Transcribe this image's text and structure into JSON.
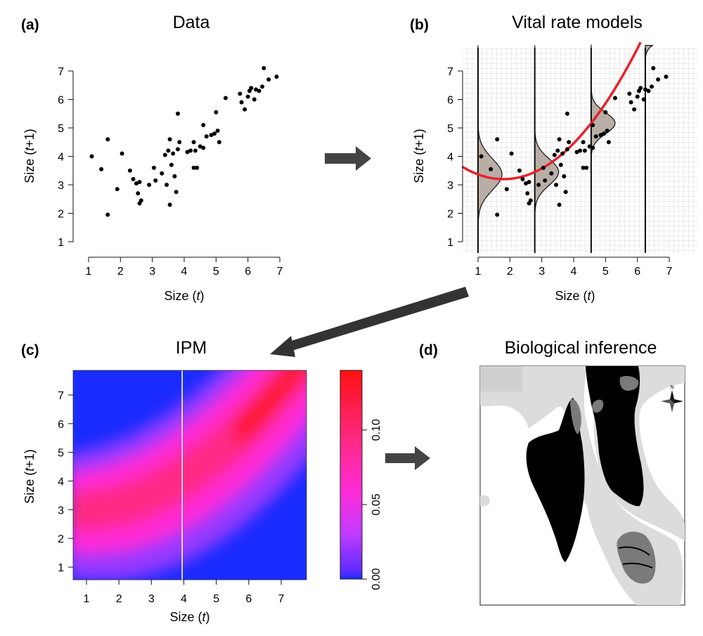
{
  "panels": {
    "a": {
      "label": "(a)",
      "title": "Data"
    },
    "b": {
      "label": "(b)",
      "title": "Vital rate models"
    },
    "c": {
      "label": "(c)",
      "title": "IPM"
    },
    "d": {
      "label": "(d)",
      "title": "Biological inference"
    }
  },
  "axes": {
    "x_label_main": "Size (",
    "x_label_var": "t",
    "x_label_end": ")",
    "y_label_main": "Size (",
    "y_label_var": "t",
    "y_label_end": "+1)",
    "x_ticks": [
      "1",
      "2",
      "3",
      "4",
      "5",
      "6",
      "7"
    ],
    "y_ticks": [
      "1",
      "2",
      "3",
      "4",
      "5",
      "6",
      "7"
    ],
    "xlim": [
      1,
      7
    ],
    "ylim": [
      1,
      7
    ]
  },
  "chart_data": {
    "type": "scatter",
    "x": [
      1.1,
      1.4,
      1.6,
      1.6,
      1.9,
      2.05,
      2.3,
      2.4,
      2.5,
      2.55,
      2.6,
      2.6,
      2.65,
      2.9,
      3.05,
      3.1,
      3.3,
      3.4,
      3.45,
      3.5,
      3.55,
      3.55,
      3.6,
      3.65,
      3.7,
      3.75,
      3.8,
      3.8,
      3.85,
      4.1,
      4.2,
      4.3,
      4.3,
      4.35,
      4.4,
      4.5,
      4.6,
      4.6,
      4.7,
      4.85,
      4.95,
      5.0,
      5.05,
      5.1,
      5.3,
      5.75,
      5.8,
      5.9,
      6.0,
      6.05,
      6.1,
      6.2,
      6.25,
      6.35,
      6.45,
      6.5,
      6.65,
      6.9
    ],
    "y": [
      4.0,
      3.55,
      1.95,
      4.6,
      2.85,
      4.1,
      3.5,
      3.2,
      3.05,
      2.7,
      2.35,
      3.1,
      2.45,
      3.0,
      3.6,
      3.15,
      3.4,
      4.05,
      3.0,
      4.2,
      2.3,
      4.6,
      3.7,
      4.1,
      3.3,
      2.75,
      4.25,
      5.5,
      4.5,
      4.15,
      4.2,
      3.6,
      4.5,
      4.2,
      3.6,
      4.35,
      4.3,
      5.1,
      4.7,
      4.75,
      4.8,
      5.55,
      4.9,
      4.5,
      6.05,
      6.2,
      5.9,
      5.65,
      6.1,
      6.3,
      6.4,
      6.0,
      6.35,
      6.3,
      6.45,
      7.1,
      6.7,
      6.8
    ],
    "xlabel": "Size (t)",
    "ylabel": "Size (t+1)",
    "xlim": [
      1,
      7
    ],
    "ylim": [
      1,
      7
    ],
    "fit_curve": {
      "type": "quadratic",
      "vertex_x": 1.8,
      "vertex_y": 3.2,
      "a": 0.26
    },
    "density_slices_x": [
      1.0,
      2.78,
      4.55,
      6.25
    ]
  },
  "ipm": {
    "colorbar_ticks": [
      "0.00",
      "0.05",
      "0.10"
    ],
    "colorbar_values": [
      0.0,
      0.05,
      0.1
    ],
    "colorbar_max": 0.14,
    "vertical_line_x": 3.95,
    "colors": {
      "low": "#1a2bff",
      "mid": "#ff2bd0",
      "high": "#ff1010"
    }
  },
  "map": {
    "compass": "N"
  },
  "colors": {
    "fit_line": "#e8212a",
    "density_fill": "#b9aea6",
    "arrow": "#444444"
  }
}
